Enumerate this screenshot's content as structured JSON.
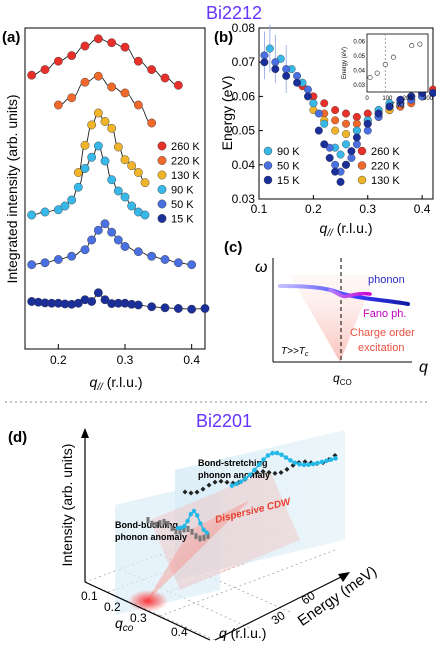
{
  "titles": {
    "top": "Bi2212",
    "bottom": "Bi2201"
  },
  "panel_labels": {
    "a": "(a)",
    "b": "(b)",
    "c": "(c)",
    "d": "(d)"
  },
  "colors": {
    "title": "#6633ff",
    "T260": "#e8302a",
    "T220": "#f0682a",
    "T130": "#f0b42a",
    "T90": "#38b8e8",
    "T50": "#4a6fe0",
    "T15": "#1a2f9a",
    "fit": "#222222",
    "cyan": "#22b8e8",
    "gray": "#777777"
  },
  "chart_data": [
    {
      "panel": "a",
      "type": "scatter",
      "ylabel": "Integrated intensity (arb. units)",
      "xlabel": "q// (r.l.u.)",
      "xlim": [
        0.15,
        0.42
      ],
      "xticks": [
        "0.2",
        "0.3",
        "0.4"
      ],
      "legend": [
        "260 K",
        "220 K",
        "130 K",
        "90 K",
        "50 K",
        "15 K"
      ],
      "series": [
        {
          "name": "260 K",
          "key": "T260",
          "x": [
            0.16,
            0.18,
            0.2,
            0.22,
            0.24,
            0.26,
            0.28,
            0.3,
            0.32,
            0.34,
            0.36,
            0.38
          ],
          "y": [
            0.3,
            0.4,
            0.55,
            0.65,
            0.82,
            0.95,
            0.88,
            0.8,
            0.55,
            0.4,
            0.25,
            0.12
          ]
        },
        {
          "name": "220 K",
          "key": "T220",
          "x": [
            0.2,
            0.22,
            0.24,
            0.26,
            0.28,
            0.3,
            0.32,
            0.34
          ],
          "y": [
            0.5,
            0.62,
            0.88,
            0.98,
            0.8,
            0.7,
            0.5,
            0.2
          ]
        },
        {
          "name": "130 K",
          "key": "T130",
          "x": [
            0.23,
            0.24,
            0.25,
            0.26,
            0.27,
            0.28,
            0.29,
            0.3,
            0.31,
            0.32,
            0.33
          ],
          "y": [
            0.3,
            0.62,
            0.86,
            1.0,
            0.9,
            0.82,
            0.6,
            0.45,
            0.38,
            0.3,
            0.18
          ]
        },
        {
          "name": "90 K",
          "key": "T90",
          "x": [
            0.16,
            0.18,
            0.2,
            0.21,
            0.22,
            0.23,
            0.24,
            0.25,
            0.26,
            0.27,
            0.28,
            0.29,
            0.3,
            0.31,
            0.32,
            0.33
          ],
          "y": [
            0.08,
            0.12,
            0.15,
            0.2,
            0.28,
            0.45,
            0.7,
            0.85,
            1.0,
            0.8,
            0.55,
            0.4,
            0.32,
            0.2,
            0.12,
            0.08
          ]
        },
        {
          "name": "50 K",
          "key": "T50",
          "x": [
            0.16,
            0.18,
            0.2,
            0.22,
            0.24,
            0.25,
            0.26,
            0.27,
            0.28,
            0.29,
            0.3,
            0.32,
            0.34,
            0.36,
            0.38,
            0.4
          ],
          "y": [
            0.02,
            0.05,
            0.1,
            0.15,
            0.25,
            0.4,
            0.55,
            0.65,
            0.52,
            0.4,
            0.3,
            0.22,
            0.15,
            0.1,
            0.05,
            0.02
          ]
        },
        {
          "name": "15 K",
          "key": "T15",
          "x": [
            0.16,
            0.17,
            0.18,
            0.19,
            0.2,
            0.21,
            0.22,
            0.23,
            0.24,
            0.25,
            0.26,
            0.27,
            0.28,
            0.29,
            0.3,
            0.31,
            0.32,
            0.34,
            0.36,
            0.38,
            0.4,
            0.42
          ],
          "y": [
            0.1,
            0.08,
            0.06,
            0.05,
            0.05,
            0.03,
            0.02,
            0.05,
            0.15,
            0.1,
            0.35,
            0.15,
            0.04,
            0.05,
            0.05,
            0.02,
            0.0,
            -0.05,
            -0.08,
            -0.1,
            -0.12,
            -0.1
          ]
        }
      ]
    },
    {
      "panel": "b",
      "type": "scatter",
      "ylabel": "Energy (eV)",
      "xlabel": "q// (r.l.u.)",
      "xlim": [
        0.1,
        0.42
      ],
      "ylim": [
        0.03,
        0.08
      ],
      "xticks": [
        "0.1",
        "0.2",
        "0.3",
        "0.4"
      ],
      "yticks": [
        "0.03",
        "0.04",
        "0.05",
        "0.06",
        "0.07",
        "0.08"
      ],
      "legend_left": [
        "90 K",
        "50 K",
        "15 K"
      ],
      "legend_right": [
        "260 K",
        "220 K",
        "130 K"
      ],
      "series": [
        {
          "name": "260 K",
          "key": "T260",
          "x": [
            0.18,
            0.2,
            0.22,
            0.24,
            0.26,
            0.28,
            0.3,
            0.32,
            0.34,
            0.36,
            0.38,
            0.4,
            0.42
          ],
          "y": [
            0.063,
            0.06,
            0.058,
            0.056,
            0.055,
            0.054,
            0.055,
            0.056,
            0.057,
            0.058,
            0.059,
            0.061,
            0.062
          ]
        },
        {
          "name": "220 K",
          "key": "T220",
          "x": [
            0.2,
            0.22,
            0.24,
            0.26,
            0.28,
            0.3,
            0.32,
            0.34,
            0.36,
            0.38,
            0.4
          ],
          "y": [
            0.058,
            0.055,
            0.053,
            0.052,
            0.052,
            0.053,
            0.055,
            0.056,
            0.057,
            0.058,
            0.06
          ]
        },
        {
          "name": "130 K",
          "key": "T130",
          "x": [
            0.2,
            0.22,
            0.24,
            0.26,
            0.28,
            0.3,
            0.32,
            0.34
          ],
          "y": [
            0.056,
            0.053,
            0.05,
            0.049,
            0.05,
            0.052,
            0.054,
            0.056
          ]
        },
        {
          "name": "90 K",
          "key": "T90",
          "x": [
            0.12,
            0.14,
            0.16,
            0.18,
            0.2,
            0.22,
            0.24,
            0.25,
            0.26,
            0.28,
            0.3,
            0.32,
            0.34,
            0.36,
            0.38
          ],
          "y": [
            0.074,
            0.071,
            0.068,
            0.064,
            0.058,
            0.052,
            0.045,
            0.043,
            0.046,
            0.05,
            0.053,
            0.056,
            0.058,
            0.059,
            0.06
          ]
        },
        {
          "name": "50 K",
          "key": "T50",
          "x": [
            0.11,
            0.13,
            0.15,
            0.17,
            0.19,
            0.21,
            0.23,
            0.24,
            0.25,
            0.26,
            0.27,
            0.28,
            0.3,
            0.32,
            0.34,
            0.36,
            0.38,
            0.4,
            0.42
          ],
          "y": [
            0.072,
            0.07,
            0.068,
            0.066,
            0.062,
            0.055,
            0.045,
            0.04,
            0.038,
            0.04,
            0.042,
            0.046,
            0.05,
            0.054,
            0.057,
            0.058,
            0.059,
            0.06,
            0.061
          ]
        },
        {
          "name": "15 K",
          "key": "T15",
          "x": [
            0.11,
            0.13,
            0.15,
            0.17,
            0.19,
            0.21,
            0.22,
            0.23,
            0.24,
            0.25,
            0.26,
            0.27,
            0.28,
            0.3,
            0.32,
            0.34,
            0.36,
            0.38,
            0.4,
            0.42
          ],
          "y": [
            0.07,
            0.068,
            0.066,
            0.064,
            0.06,
            0.05,
            0.046,
            0.042,
            0.038,
            0.035,
            0.04,
            0.044,
            0.048,
            0.052,
            0.055,
            0.057,
            0.059,
            0.06,
            0.061,
            0.061
          ]
        }
      ],
      "inset": {
        "ylabel": "Energy (eV)",
        "xlabel": "T (K)",
        "xticks": [
          "0",
          "100",
          "200",
          "300"
        ],
        "yticks": [
          "0.03",
          "0.04",
          "0.05",
          "0.06"
        ],
        "xlim": [
          0,
          300
        ],
        "ylim": [
          0.025,
          0.065
        ],
        "x": [
          15,
          50,
          90,
          130,
          220,
          260
        ],
        "y": [
          0.035,
          0.038,
          0.044,
          0.049,
          0.057,
          0.058
        ]
      }
    },
    {
      "panel": "c",
      "type": "diagram",
      "ylabel": "ω",
      "xlabel": "q",
      "tick": "qCO",
      "labels": {
        "phonon": "phonon",
        "fano": "Fano ph.",
        "co": "Charge order",
        "excitation": "excitation",
        "temp": "T>>Tc"
      }
    },
    {
      "panel": "d",
      "type": "3d-scatter",
      "zlabel": "Intensity (arb. units)",
      "ylabel": "Energy (meV)",
      "xlabel": "q (r.l.u.)",
      "xticks": [
        "0.1",
        "0.2",
        "0.3",
        "0.4"
      ],
      "yticks": [
        "30",
        "60"
      ],
      "qco": "qco",
      "annotations": {
        "stretch1": "Bond-stretching",
        "stretch2": "phonon anomaly",
        "buck1": "Bond-buckling",
        "buck2": "phonon anomaly",
        "cdw": "Dispersive CDW"
      }
    }
  ]
}
